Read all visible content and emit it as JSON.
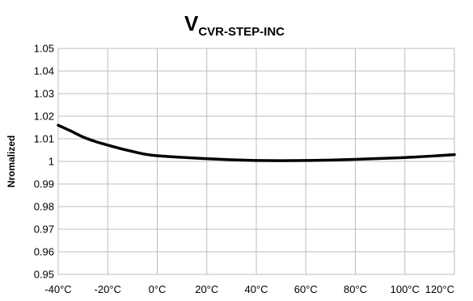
{
  "chart_data": {
    "type": "line",
    "title": "V",
    "title_subscript": "CVR-STEP-INC",
    "xlabel": "",
    "ylabel": "Nromalized",
    "x_tick_labels": [
      "-40°C",
      "-20°C",
      "0°C",
      "20°C",
      "40°C",
      "60°C",
      "80°C",
      "100°C",
      "120°C"
    ],
    "y_tick_labels": [
      "1.05",
      "1.04",
      "1.03",
      "1.02",
      "1.01",
      "1",
      "0.99",
      "0.98",
      "0.97",
      "0.96",
      "0.95"
    ],
    "xlim": [
      -40,
      120
    ],
    "ylim": [
      0.95,
      1.05
    ],
    "grid": true,
    "series": [
      {
        "color": "#000000",
        "x": [
          -40,
          -35,
          -30,
          -25,
          -20,
          -15,
          -10,
          -5,
          0,
          10,
          20,
          30,
          40,
          50,
          60,
          70,
          80,
          90,
          100,
          110,
          120
        ],
        "values": [
          1.016,
          1.0135,
          1.0108,
          1.0088,
          1.0072,
          1.0057,
          1.0044,
          1.0032,
          1.0025,
          1.0018,
          1.0012,
          1.0007,
          1.0004,
          1.0003,
          1.0004,
          1.0006,
          1.0009,
          1.0013,
          1.0017,
          1.0023,
          1.003
        ]
      }
    ]
  }
}
